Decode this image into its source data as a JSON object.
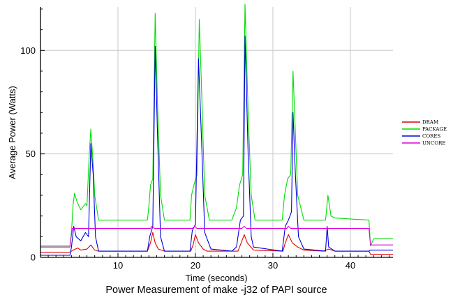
{
  "chart_data": {
    "type": "line",
    "title": "Power Measurement of make -j32 of PAPI source",
    "xlabel": "Time (seconds)",
    "ylabel": "Average Power (Watts)",
    "xlim": [
      0,
      45.5
    ],
    "ylim": [
      0,
      121
    ],
    "xticks": [
      10,
      20,
      30,
      40
    ],
    "yticks": [
      0,
      50,
      100
    ],
    "xtick_labels": [
      "10",
      "20",
      "30",
      "40"
    ],
    "ytick_labels": [
      "0",
      "50",
      "100"
    ],
    "grid": true,
    "legend_position": "right",
    "series": [
      {
        "name": "DRAM",
        "color": "#e00000",
        "points": [
          [
            0,
            2.5
          ],
          [
            3.8,
            2.5
          ],
          [
            4.2,
            3.5
          ],
          [
            4.8,
            4.5
          ],
          [
            5.2,
            3.5
          ],
          [
            6.0,
            4
          ],
          [
            6.5,
            6
          ],
          [
            7.0,
            3.5
          ],
          [
            7.5,
            3
          ],
          [
            13.8,
            3
          ],
          [
            14.2,
            7
          ],
          [
            14.5,
            12
          ],
          [
            14.8,
            7
          ],
          [
            15.2,
            4
          ],
          [
            16,
            3
          ],
          [
            19.4,
            3
          ],
          [
            19.7,
            6
          ],
          [
            20.0,
            11
          ],
          [
            20.4,
            7
          ],
          [
            21,
            4
          ],
          [
            21.5,
            3
          ],
          [
            25.5,
            3
          ],
          [
            26.0,
            8
          ],
          [
            26.3,
            11
          ],
          [
            26.7,
            7
          ],
          [
            27.5,
            3.5
          ],
          [
            31.3,
            3
          ],
          [
            31.6,
            7
          ],
          [
            32.0,
            11
          ],
          [
            32.5,
            7
          ],
          [
            33.2,
            5
          ],
          [
            34,
            3.5
          ],
          [
            36.5,
            3
          ],
          [
            37.2,
            4
          ],
          [
            38,
            3
          ],
          [
            42.4,
            3
          ],
          [
            42.6,
            1.5
          ],
          [
            45.5,
            1.5
          ]
        ]
      },
      {
        "name": "PACKAGE",
        "color": "#00dd00",
        "points": [
          [
            0,
            5.5
          ],
          [
            3.8,
            5.5
          ],
          [
            4.0,
            12
          ],
          [
            4.2,
            25
          ],
          [
            4.4,
            31
          ],
          [
            4.7,
            27
          ],
          [
            5.2,
            23
          ],
          [
            5.8,
            26
          ],
          [
            6.0,
            25
          ],
          [
            6.3,
            50
          ],
          [
            6.5,
            62
          ],
          [
            6.8,
            45
          ],
          [
            7.0,
            30
          ],
          [
            7.5,
            18
          ],
          [
            13.8,
            18
          ],
          [
            14.0,
            25
          ],
          [
            14.2,
            35
          ],
          [
            14.5,
            38
          ],
          [
            14.8,
            118
          ],
          [
            15.1,
            75
          ],
          [
            15.5,
            30
          ],
          [
            16,
            18
          ],
          [
            19.3,
            18
          ],
          [
            19.5,
            30
          ],
          [
            19.8,
            35
          ],
          [
            20.2,
            40
          ],
          [
            20.5,
            115
          ],
          [
            20.8,
            80
          ],
          [
            21.2,
            30
          ],
          [
            21.8,
            18
          ],
          [
            24.7,
            18
          ],
          [
            25.3,
            24
          ],
          [
            25.7,
            35
          ],
          [
            26.1,
            40
          ],
          [
            26.4,
            124
          ],
          [
            26.8,
            70
          ],
          [
            27.2,
            30
          ],
          [
            27.7,
            18
          ],
          [
            31.2,
            18
          ],
          [
            31.5,
            30
          ],
          [
            31.9,
            38
          ],
          [
            32.3,
            40
          ],
          [
            32.6,
            90
          ],
          [
            32.9,
            60
          ],
          [
            33.2,
            30
          ],
          [
            34,
            18
          ],
          [
            36.8,
            18
          ],
          [
            37.1,
            30
          ],
          [
            37.5,
            20
          ],
          [
            38,
            19
          ],
          [
            42.4,
            18
          ],
          [
            42.6,
            5.5
          ],
          [
            43,
            9
          ],
          [
            45.5,
            9
          ]
        ]
      },
      {
        "name": "CORES",
        "color": "#0000dd",
        "points": [
          [
            0,
            1
          ],
          [
            3.8,
            1
          ],
          [
            4.0,
            5
          ],
          [
            4.3,
            15
          ],
          [
            4.6,
            10
          ],
          [
            5.2,
            8
          ],
          [
            5.8,
            12
          ],
          [
            6.2,
            10
          ],
          [
            6.5,
            55
          ],
          [
            6.8,
            40
          ],
          [
            7.1,
            10
          ],
          [
            7.5,
            3
          ],
          [
            13.8,
            3
          ],
          [
            14.1,
            10
          ],
          [
            14.5,
            15
          ],
          [
            14.8,
            102
          ],
          [
            15.1,
            60
          ],
          [
            15.5,
            10
          ],
          [
            16,
            3
          ],
          [
            19.3,
            3
          ],
          [
            19.6,
            13
          ],
          [
            20.0,
            16
          ],
          [
            20.4,
            96
          ],
          [
            20.8,
            55
          ],
          [
            21.2,
            12
          ],
          [
            22,
            4
          ],
          [
            24.7,
            3
          ],
          [
            25.3,
            5
          ],
          [
            25.8,
            18
          ],
          [
            26.2,
            20
          ],
          [
            26.4,
            107
          ],
          [
            26.8,
            50
          ],
          [
            27.2,
            10
          ],
          [
            27.5,
            5
          ],
          [
            31.2,
            3
          ],
          [
            31.6,
            15
          ],
          [
            32.0,
            18
          ],
          [
            32.4,
            22
          ],
          [
            32.6,
            70
          ],
          [
            32.9,
            40
          ],
          [
            33.3,
            10
          ],
          [
            34,
            4
          ],
          [
            36.8,
            3
          ],
          [
            37.0,
            15
          ],
          [
            37.2,
            5
          ],
          [
            38,
            3
          ],
          [
            42.4,
            3
          ],
          [
            42.6,
            3.5
          ],
          [
            45.5,
            3.5
          ]
        ]
      },
      {
        "name": "UNCORE",
        "color": "#dd00dd",
        "points": [
          [
            0,
            5
          ],
          [
            3.8,
            5
          ],
          [
            4.1,
            14
          ],
          [
            14.2,
            14
          ],
          [
            14.4,
            15
          ],
          [
            14.7,
            14
          ],
          [
            19.6,
            14
          ],
          [
            19.9,
            15
          ],
          [
            20.2,
            14
          ],
          [
            26.0,
            14
          ],
          [
            26.3,
            15
          ],
          [
            26.6,
            14
          ],
          [
            31.8,
            14
          ],
          [
            32.0,
            15
          ],
          [
            32.3,
            14
          ],
          [
            42.4,
            14
          ],
          [
            42.6,
            6
          ],
          [
            45.5,
            6
          ]
        ]
      }
    ]
  }
}
